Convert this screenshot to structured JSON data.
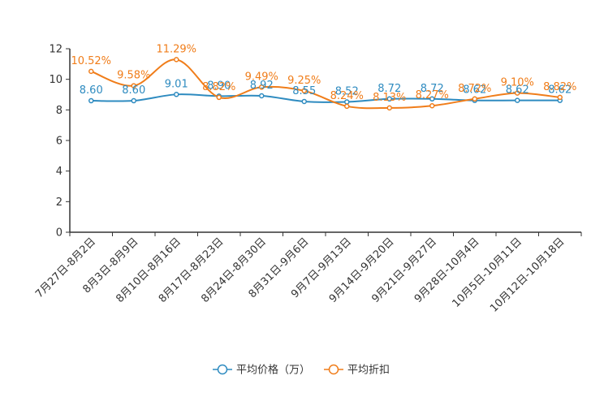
{
  "chart_data": {
    "type": "line",
    "title": "",
    "xlabel": "",
    "ylabel": "",
    "ylim": [
      0,
      12
    ],
    "yticks": [
      0,
      2,
      4,
      6,
      8,
      10,
      12
    ],
    "grid": false,
    "legend_position": "bottom-center",
    "categories": [
      "7月27日-8月2日",
      "8月3日-8月9日",
      "8月10日-8月16日",
      "8月17日-8月23日",
      "8月24日-8月30日",
      "8月31日-9月6日",
      "9月7日-9月13日",
      "9月14日-9月20日",
      "9月21日-9月27日",
      "9月28日-10月4日",
      "10月5日-10月11日",
      "10月12日-10月18日"
    ],
    "series": [
      {
        "name": "平均价格（万）",
        "color": "#2e8bc0",
        "values": [
          8.6,
          8.6,
          9.01,
          8.9,
          8.92,
          8.55,
          8.52,
          8.72,
          8.72,
          8.62,
          8.62,
          8.62
        ],
        "labels": [
          "8.60",
          "8.60",
          "9.01",
          "8.90",
          "8.92",
          "8.55",
          "8.52",
          "8.72",
          "8.72",
          "8.62",
          "8.62",
          "8.62"
        ]
      },
      {
        "name": "平均折扣",
        "color": "#f07d1a",
        "values": [
          10.52,
          9.58,
          11.29,
          8.82,
          9.49,
          9.25,
          8.24,
          8.13,
          8.27,
          8.72,
          9.1,
          8.82
        ],
        "labels": [
          "10.52%",
          "9.58%",
          "11.29%",
          "8.82%",
          "9.49%",
          "9.25%",
          "8.24%",
          "8.13%",
          "8.27%",
          "8.72%",
          "9.10%",
          "8.82%"
        ]
      }
    ]
  }
}
